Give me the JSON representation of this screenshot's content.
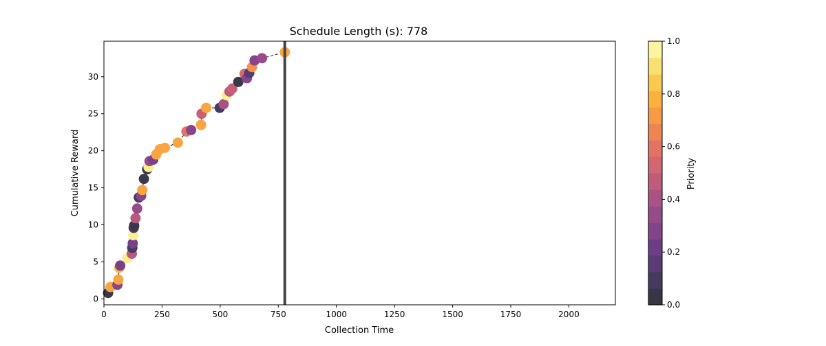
{
  "chart_data": {
    "type": "scatter",
    "title": "Schedule Length (s): 778",
    "xlabel": "Collection Time",
    "ylabel": "Cumulative Reward",
    "xlim": [
      0,
      2200
    ],
    "ylim": [
      -0.8,
      34.8
    ],
    "xticks": [
      0,
      250,
      500,
      750,
      1000,
      1250,
      1500,
      1750,
      2000
    ],
    "yticks": [
      0,
      5,
      10,
      15,
      20,
      25,
      30
    ],
    "grid": false,
    "colormap": "inferno",
    "vertical_line_x": 778,
    "colorbar": {
      "label": "Priority",
      "range": [
        0,
        1
      ],
      "ticks": [
        "0.0",
        "0.2",
        "0.4",
        "0.6",
        "0.8",
        "1.0"
      ]
    },
    "series": [
      {
        "x": [
          18,
          28,
          58,
          62,
          66,
          70,
          100,
          120,
          122,
          124,
          126,
          128,
          130,
          136,
          143,
          150,
          160,
          165,
          172,
          186,
          192,
          196,
          212,
          225,
          240,
          262,
          318,
          355,
          375,
          418,
          420,
          440,
          498,
          515,
          528,
          540,
          552,
          578,
          605,
          615,
          625,
          637,
          648,
          680,
          778
        ],
        "y": [
          0.8,
          1.6,
          1.9,
          2.6,
          4.2,
          4.5,
          5.5,
          6.1,
          6.9,
          7.5,
          8.6,
          9.6,
          9.9,
          10.9,
          12.2,
          13.7,
          13.9,
          14.7,
          16.2,
          17.5,
          17.8,
          18.6,
          18.8,
          19.5,
          20.2,
          20.4,
          21.1,
          22.6,
          22.8,
          23.5,
          25.0,
          25.8,
          25.8,
          26.3,
          27.5,
          28.0,
          28.4,
          29.3,
          30.4,
          29.8,
          30.5,
          31.3,
          32.2,
          32.5,
          33.3
        ],
        "priority": [
          0.05,
          0.75,
          0.3,
          0.75,
          0.8,
          0.25,
          0.95,
          0.45,
          0.1,
          0.25,
          0.95,
          0.1,
          0.05,
          0.45,
          0.35,
          0.1,
          0.3,
          0.75,
          0.05,
          0.05,
          0.95,
          0.35,
          0.25,
          0.75,
          0.75,
          0.75,
          0.75,
          0.6,
          0.3,
          0.75,
          0.5,
          0.75,
          0.1,
          0.4,
          0.95,
          0.45,
          0.5,
          0.05,
          0.55,
          0.3,
          0.15,
          0.7,
          0.3,
          0.35,
          0.75
        ]
      }
    ]
  }
}
